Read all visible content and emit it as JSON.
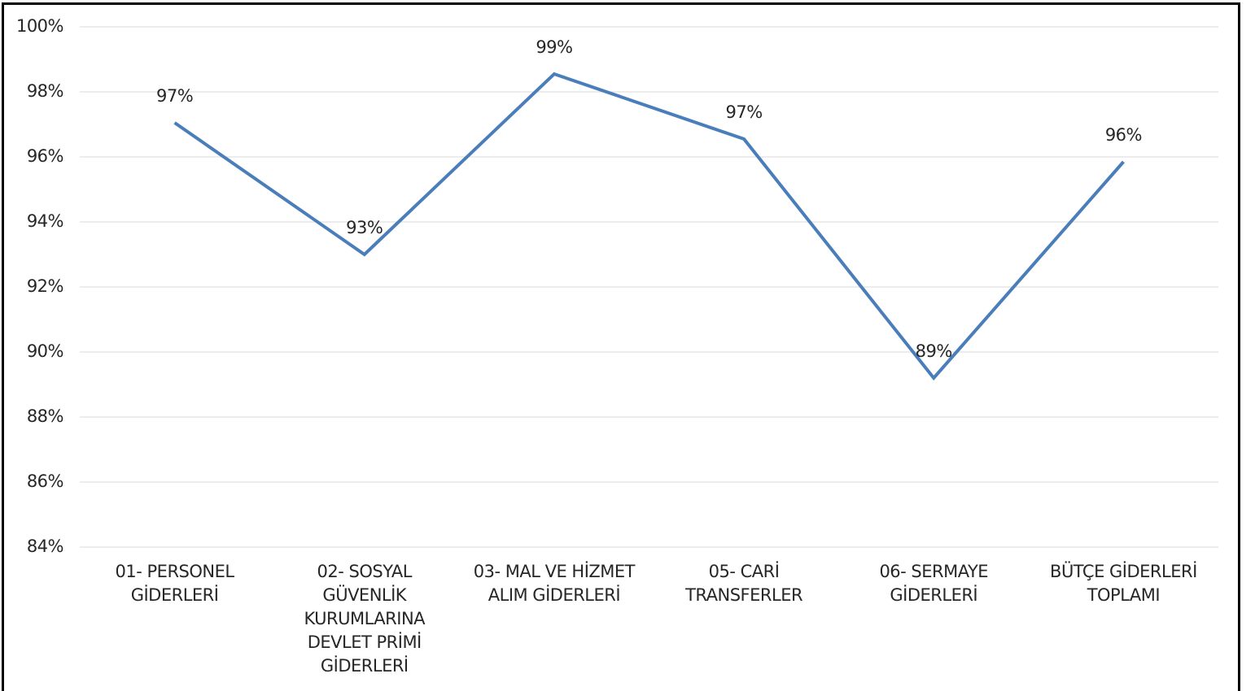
{
  "chart_data": {
    "type": "line",
    "categories": [
      "01- PERSONEL GİDERLERİ",
      "02- SOSYAL GÜVENLİK KURUMLARINA DEVLET PRİMİ GİDERLERİ",
      "03- MAL VE HİZMET ALIM GİDERLERİ",
      "05- CARİ TRANSFERLER",
      "06- SERMAYE GİDERLERİ",
      "BÜTÇE GİDERLERİ TOPLAMI"
    ],
    "series": [
      {
        "color": "#4a7ebb",
        "values": [
          97.05,
          93.0,
          98.55,
          96.55,
          89.2,
          95.85
        ],
        "value_labels": [
          "97%",
          "93%",
          "99%",
          "97%",
          "89%",
          "96%"
        ]
      }
    ],
    "ylim": [
      84,
      100
    ],
    "yticks": [
      {
        "value": 84,
        "label": "84%"
      },
      {
        "value": 86,
        "label": "86%"
      },
      {
        "value": 88,
        "label": "88%"
      },
      {
        "value": 90,
        "label": "90%"
      },
      {
        "value": 92,
        "label": "92%"
      },
      {
        "value": 94,
        "label": "94%"
      },
      {
        "value": 96,
        "label": "96%"
      },
      {
        "value": 98,
        "label": "98%"
      },
      {
        "value": 100,
        "label": "100%"
      }
    ],
    "grid": true
  }
}
